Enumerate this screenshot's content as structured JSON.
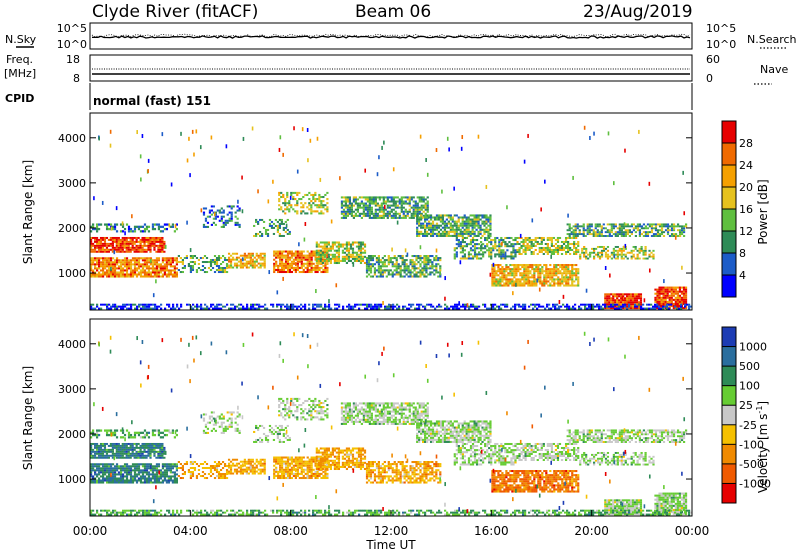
{
  "header": {
    "station": "Clyde River (fitACF)",
    "beam": "Beam 06",
    "date": "23/Aug/2019"
  },
  "top_panels": {
    "nsky_label": "N.Sky",
    "nsky_ticks": [
      "10^5",
      "10^0"
    ],
    "nsearch_label": "N.Search",
    "nsearch_ticks": [
      "10^5",
      "10^0"
    ],
    "freq_label": "Freq.",
    "freq_unit": "[MHz]",
    "freq_ticks": [
      "18",
      "8"
    ],
    "nave_label": "Nave",
    "nave_ticks": [
      "60",
      "0"
    ],
    "cpid_label": "CPID",
    "cpid_value": "normal (fast) 151"
  },
  "chart_data": [
    {
      "type": "heatmap",
      "name": "power",
      "ylabel": "Slant Range [km]",
      "yticks": [
        "1000",
        "2000",
        "3000",
        "4000"
      ],
      "ylim": [
        180,
        4550
      ],
      "x_ticks": [
        "00:00",
        "04:00",
        "08:00",
        "12:00",
        "16:00",
        "20:00",
        "00:00"
      ],
      "colorbar_label": "Power [dB]",
      "colorbar_ticks": [
        "4",
        "8",
        "12",
        "16",
        "20",
        "24",
        "28"
      ],
      "colors": [
        "#0000ff",
        "#1c5cc8",
        "#2e8b57",
        "#5fbf3f",
        "#e6c21e",
        "#f5a000",
        "#f06a00",
        "#e60000"
      ]
    },
    {
      "type": "heatmap",
      "name": "velocity",
      "ylabel": "Slant Range [km]",
      "yticks": [
        "1000",
        "2000",
        "3000",
        "4000"
      ],
      "ylim": [
        180,
        4550
      ],
      "x_ticks": [
        "00:00",
        "04:00",
        "08:00",
        "12:00",
        "16:00",
        "20:00",
        "00:00"
      ],
      "colorbar_label": "Velocity",
      "colorbar_unit": "[m s",
      "colorbar_unit_sup": "-1",
      "colorbar_unit_end": "]",
      "colorbar_ticks": [
        "1000",
        "500",
        "100",
        "25",
        "-25",
        "-100",
        "-500",
        "-1000"
      ],
      "colors": [
        "#1c3cb4",
        "#2a6e9e",
        "#2e8b57",
        "#66cc33",
        "#c8c8c8",
        "#f5c000",
        "#f08a00",
        "#f05a00",
        "#e60000"
      ]
    }
  ],
  "x_axis_label": "Time UT"
}
